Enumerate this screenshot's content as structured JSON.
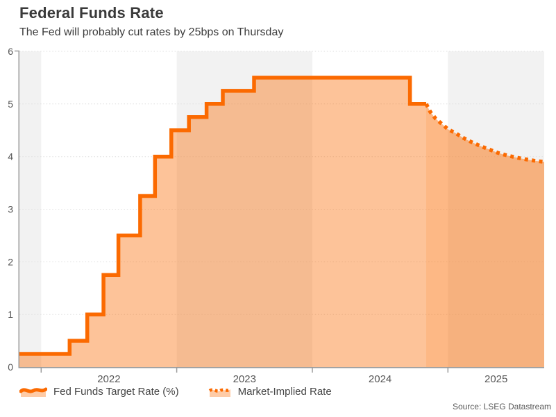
{
  "header": {
    "title": "Federal Funds Rate",
    "subtitle": "The Fed will probably cut rates by 25bps on Thursday"
  },
  "legend": {
    "items": [
      {
        "label": "Fed Funds Target Rate (%)",
        "swatch": "solid-wave-area"
      },
      {
        "label": "Market-Implied Rate",
        "swatch": "dotted-wave-area"
      }
    ]
  },
  "footer": {
    "source": "Source: LSEG Datastream"
  },
  "chart_data": {
    "type": "area",
    "title": "Federal Funds Rate",
    "subtitle": "The Fed will probably cut rates by 25bps on Thursday",
    "xlabel": "",
    "ylabel": "",
    "xlim": [
      2021.84,
      2025.71
    ],
    "ylim": [
      0,
      6
    ],
    "y_ticks": [
      0,
      1,
      2,
      3,
      4,
      5,
      6
    ],
    "x_ticks": [
      2022,
      2023,
      2024,
      2025
    ],
    "x_tick_labels": [
      "2022",
      "2023",
      "2024",
      "2025"
    ],
    "grid": "dotted-horizontal",
    "legend_position": "bottom",
    "shaded_year_bands": [
      [
        2021.84,
        2022
      ],
      [
        2023,
        2024
      ],
      [
        2025,
        2025.71
      ]
    ],
    "series": [
      {
        "name": "Fed Funds Target Rate (%)",
        "type": "step-area",
        "line_style": "solid",
        "steps": [
          [
            2021.84,
            0.25
          ],
          [
            2022.21,
            0.5
          ],
          [
            2022.34,
            1.0
          ],
          [
            2022.46,
            1.75
          ],
          [
            2022.57,
            2.5
          ],
          [
            2022.73,
            3.25
          ],
          [
            2022.84,
            4.0
          ],
          [
            2022.96,
            4.5
          ],
          [
            2023.09,
            4.75
          ],
          [
            2023.22,
            5.0
          ],
          [
            2023.34,
            5.25
          ],
          [
            2023.57,
            5.5
          ],
          [
            2024.72,
            5.0
          ]
        ],
        "end_x": 2024.84
      },
      {
        "name": "Market-Implied Rate",
        "type": "line-area",
        "line_style": "dotted",
        "points": [
          [
            2024.84,
            5.0
          ],
          [
            2024.87,
            4.85
          ],
          [
            2024.91,
            4.72
          ],
          [
            2024.96,
            4.61
          ],
          [
            2025.0,
            4.52
          ],
          [
            2025.06,
            4.44
          ],
          [
            2025.11,
            4.36
          ],
          [
            2025.17,
            4.28
          ],
          [
            2025.24,
            4.2
          ],
          [
            2025.31,
            4.13
          ],
          [
            2025.37,
            4.07
          ],
          [
            2025.44,
            4.02
          ],
          [
            2025.51,
            3.98
          ],
          [
            2025.57,
            3.95
          ],
          [
            2025.64,
            3.92
          ],
          [
            2025.71,
            3.9
          ]
        ]
      }
    ],
    "colors": {
      "line": "#fb6a01",
      "solid_fill": "rgba(251,106,1,0.40)",
      "dotted_fill": "rgba(251,106,1,0.48)",
      "year_band": "#f2f2f2",
      "grid_line": "#dedede",
      "axis": "#9b9b9b",
      "tick_label": "#555555"
    }
  }
}
